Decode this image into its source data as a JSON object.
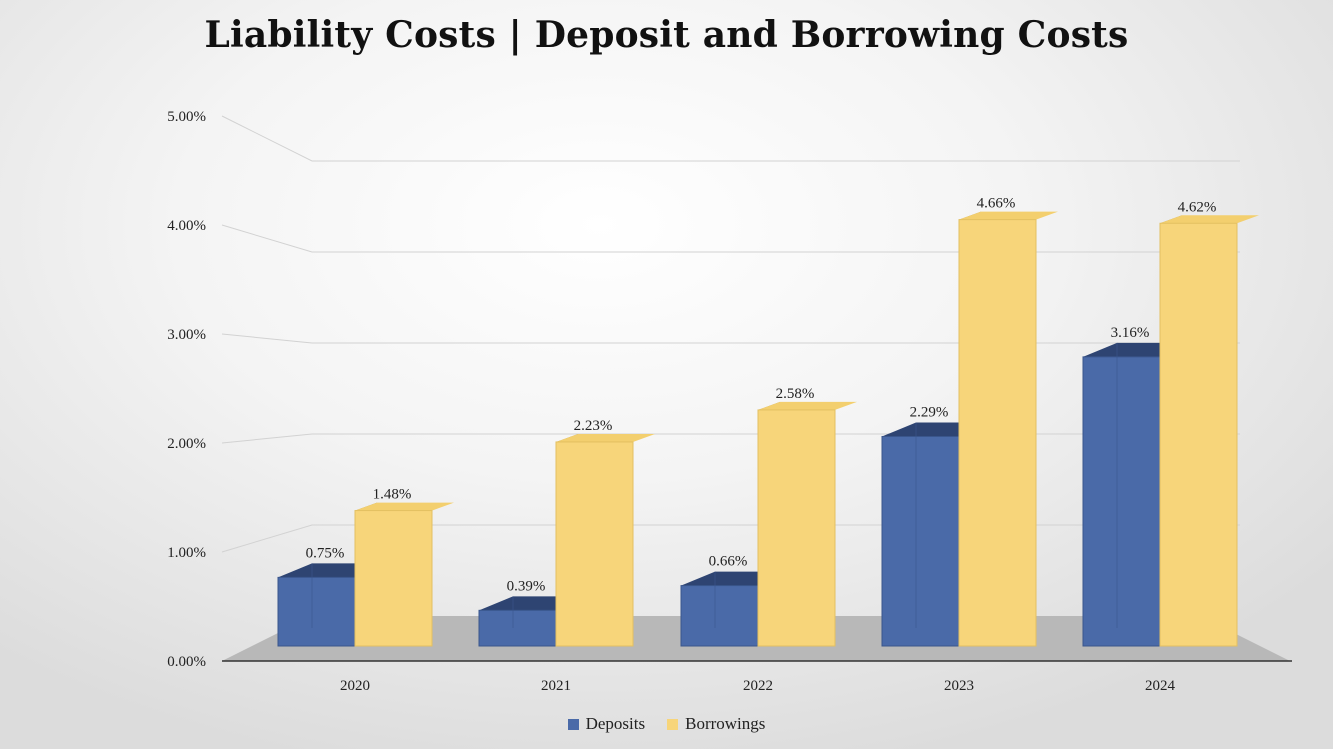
{
  "chart_data": {
    "type": "bar",
    "title": "Liability Costs | Deposit and Borrowing Costs",
    "categories": [
      "2020",
      "2021",
      "2022",
      "2023",
      "2024"
    ],
    "series": [
      {
        "name": "Deposits",
        "values": [
          0.75,
          0.39,
          0.66,
          2.29,
          3.16
        ],
        "labels": [
          "0.75%",
          "0.39%",
          "0.66%",
          "2.29%",
          "3.16%"
        ],
        "color": "#4a6aa8"
      },
      {
        "name": "Borrowings",
        "values": [
          1.48,
          2.23,
          2.58,
          4.66,
          4.62
        ],
        "labels": [
          "1.48%",
          "2.23%",
          "2.58%",
          "4.66%",
          "4.62%"
        ],
        "color": "#f7d57a"
      }
    ],
    "y_ticks": [
      "0.00%",
      "1.00%",
      "2.00%",
      "3.00%",
      "4.00%",
      "5.00%"
    ],
    "ylim": [
      0,
      5
    ],
    "xlabel": "",
    "ylabel": "",
    "grid": true,
    "legend": "bottom"
  },
  "colors": {
    "deposits_front": "#4a6aa8",
    "deposits_dark": "#2e4472",
    "borrowings_front": "#f7d57a",
    "borrowings_dark": "#a88a3e",
    "floor": "#b8b8b8",
    "gridline": "#d2d2d2"
  }
}
